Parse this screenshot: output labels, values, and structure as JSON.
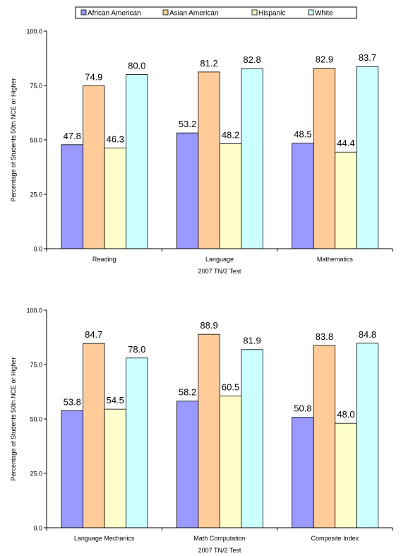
{
  "legend": {
    "items": [
      {
        "label": "African American",
        "color": "#9999ff"
      },
      {
        "label": "Asian American",
        "color": "#ffcc99"
      },
      {
        "label": "Hispanic",
        "color": "#ffffcc"
      },
      {
        "label": "White",
        "color": "#ccffff"
      }
    ]
  },
  "chart_data": [
    {
      "type": "bar",
      "xlabel": "2007 TN/2 Test",
      "ylabel": "Percentage of Students 50th NCE or Higher",
      "ylim": [
        0,
        100
      ],
      "yticks": [
        "0.0",
        "25.0",
        "50.0",
        "75.0",
        "100.0"
      ],
      "categories": [
        "Reading",
        "Language",
        "Mathematics"
      ],
      "series": [
        {
          "name": "African American",
          "values": [
            47.8,
            53.2,
            48.5
          ],
          "labels": [
            "47.8",
            "53.2",
            "48.5"
          ]
        },
        {
          "name": "Asian American",
          "values": [
            74.9,
            81.2,
            82.9
          ],
          "labels": [
            "74.9",
            "81.2",
            "82.9"
          ]
        },
        {
          "name": "Hispanic",
          "values": [
            46.3,
            48.2,
            44.4
          ],
          "labels": [
            "46.3",
            "48.2",
            "44.4"
          ]
        },
        {
          "name": "White",
          "values": [
            80.0,
            82.8,
            83.7
          ],
          "labels": [
            "80.0",
            "82.8",
            "83.7"
          ]
        }
      ]
    },
    {
      "type": "bar",
      "xlabel": "2007 TN/2 Test",
      "ylabel": "Percentage of Students 50th NCE or Higher",
      "ylim": [
        0,
        100
      ],
      "yticks": [
        "0.0",
        "25.0",
        "50.0",
        "75.0",
        "100.0"
      ],
      "categories": [
        "Language Mechanics",
        "Math Computation",
        "Composite Index"
      ],
      "series": [
        {
          "name": "African American",
          "values": [
            53.8,
            58.2,
            50.8
          ],
          "labels": [
            "53.8",
            "58.2",
            "50.8"
          ]
        },
        {
          "name": "Asian American",
          "values": [
            84.7,
            88.9,
            83.8
          ],
          "labels": [
            "84.7",
            "88.9",
            "83.8"
          ]
        },
        {
          "name": "Hispanic",
          "values": [
            54.5,
            60.5,
            48.0
          ],
          "labels": [
            "54.5",
            "60.5",
            "48.0"
          ]
        },
        {
          "name": "White",
          "values": [
            78.0,
            81.9,
            84.8
          ],
          "labels": [
            "78.0",
            "81.9",
            "84.8"
          ]
        }
      ]
    }
  ]
}
